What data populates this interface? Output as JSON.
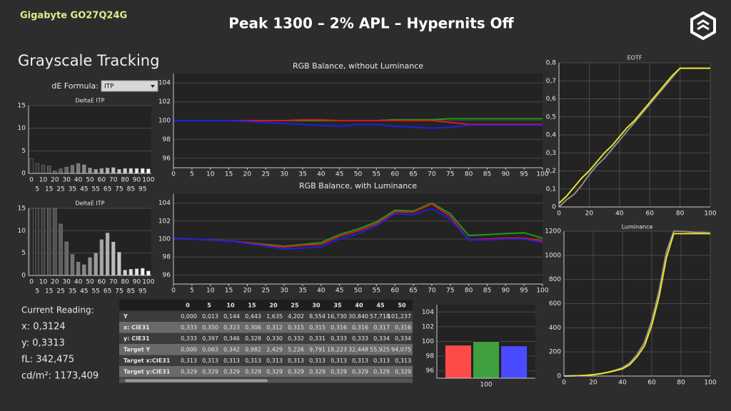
{
  "header": {
    "brand": "Gigabyte GO27Q24G",
    "title": "Peak 1300 – 2% APL – Hypernits Off"
  },
  "panel": {
    "title": "Grayscale Tracking",
    "formula_label": "dE Formula:",
    "formula_value": "ITP"
  },
  "reading": {
    "title": "Current Reading:",
    "lines": [
      "x: 0,3124",
      "y: 0,3313",
      "fL: 342,475",
      "cd/m²: 1173,409"
    ]
  },
  "table": {
    "columns": [
      "0",
      "5",
      "10",
      "15",
      "20",
      "25",
      "30",
      "35",
      "40",
      "45",
      "50"
    ],
    "rows": [
      {
        "label": "Y",
        "cells": [
          "0,000",
          "0,013",
          "0,144",
          "0,443",
          "1,635",
          "4,202",
          "8,554",
          "16,730",
          "30,840",
          "57,718",
          "101,237"
        ]
      },
      {
        "label": "x: CIE31",
        "cells": [
          "0,333",
          "0,350",
          "0,323",
          "0,306",
          "0,312",
          "0,315",
          "0,315",
          "0,316",
          "0,316",
          "0,317",
          "0,316"
        ]
      },
      {
        "label": "y: CIE31",
        "cells": [
          "0,333",
          "0,397",
          "0,346",
          "0,328",
          "0,330",
          "0,332",
          "0,331",
          "0,333",
          "0,333",
          "0,334",
          "0,334"
        ]
      },
      {
        "label": "Target Y",
        "cells": [
          "0,000",
          "0,063",
          "0,342",
          "0,982",
          "2,429",
          "5,226",
          "9,791",
          "18,223",
          "32,448",
          "55,925",
          "94,075"
        ]
      },
      {
        "label": "Target x:CIE31",
        "cells": [
          "0,313",
          "0,313",
          "0,313",
          "0,313",
          "0,313",
          "0,313",
          "0,313",
          "0,313",
          "0,313",
          "0,313",
          "0,313"
        ]
      },
      {
        "label": "Target y:CIE31",
        "cells": [
          "0,329",
          "0,329",
          "0,329",
          "0,329",
          "0,329",
          "0,329",
          "0,329",
          "0,329",
          "0,329",
          "0,329",
          "0,329"
        ]
      }
    ]
  },
  "chart_data": [
    {
      "type": "bar",
      "title": "DeltaE ITP",
      "categories": [
        0,
        5,
        10,
        15,
        20,
        25,
        30,
        35,
        40,
        45,
        50,
        55,
        60,
        65,
        70,
        75,
        80,
        85,
        90,
        95,
        100
      ],
      "values": [
        3.2,
        2.2,
        1.8,
        1.6,
        0.6,
        1.0,
        1.4,
        1.8,
        2.2,
        1.9,
        1.2,
        0.9,
        1.1,
        1.2,
        1.3,
        0.9,
        1.1,
        1.1,
        1.1,
        1.1,
        1.0
      ],
      "colors": [
        "#282828",
        "#333333",
        "#3d3d3d",
        "#484848",
        "#525252",
        "#5d5d5d",
        "#676767",
        "#727272",
        "#7c7c7c",
        "#878787",
        "#919191",
        "#9c9c9c",
        "#a6a6a6",
        "#b1b1b1",
        "#bbbbbb",
        "#c6c6c6",
        "#d0d0d0",
        "#dbdbdb",
        "#e5e5e5",
        "#f0f0f0",
        "#fafafa"
      ],
      "ylim": [
        0,
        15
      ],
      "yticks": [
        0,
        5,
        10,
        15
      ],
      "grid": "y"
    },
    {
      "type": "bar",
      "title": "DeltaE ITP",
      "categories": [
        0,
        5,
        10,
        15,
        20,
        25,
        30,
        35,
        40,
        45,
        50,
        55,
        60,
        65,
        70,
        75,
        80,
        85,
        90,
        95,
        100
      ],
      "values": [
        15,
        15,
        15,
        15,
        15,
        11.5,
        7.5,
        4.7,
        3.0,
        2.4,
        4.0,
        5.0,
        8.0,
        9.5,
        7.5,
        5.2,
        1.2,
        1.4,
        1.5,
        1.6,
        1.0
      ],
      "colors": [
        "#282828",
        "#333333",
        "#3d3d3d",
        "#484848",
        "#525252",
        "#5d5d5d",
        "#676767",
        "#727272",
        "#7c7c7c",
        "#878787",
        "#919191",
        "#9c9c9c",
        "#a6a6a6",
        "#b1b1b1",
        "#bbbbbb",
        "#c6c6c6",
        "#d0d0d0",
        "#dbdbdb",
        "#e5e5e5",
        "#f0f0f0",
        "#fafafa"
      ],
      "ylim": [
        0,
        15
      ],
      "yticks": [
        0,
        5,
        10,
        15
      ],
      "grid": "y"
    },
    {
      "type": "line",
      "title": "RGB Balance, without Luminance",
      "x": [
        0,
        5,
        10,
        15,
        20,
        25,
        30,
        35,
        40,
        45,
        50,
        55,
        60,
        65,
        70,
        75,
        80,
        85,
        90,
        95,
        100
      ],
      "series": [
        {
          "color": "#1f9a1f",
          "values": [
            100,
            100,
            100,
            100,
            100,
            100,
            100,
            100,
            100,
            100,
            100,
            100,
            100.1,
            100.1,
            100.1,
            100.2,
            100.2,
            100.2,
            100.2,
            100.2,
            100.2
          ]
        },
        {
          "color": "#d11a1a",
          "values": [
            100,
            100,
            100,
            100,
            100,
            100,
            100,
            100.1,
            100.1,
            100,
            100,
            100,
            100,
            100,
            100,
            99.8,
            99.6,
            99.6,
            99.6,
            99.6,
            99.6
          ]
        },
        {
          "color": "#2020e0",
          "values": [
            100,
            100,
            100,
            100,
            99.9,
            99.8,
            99.7,
            99.6,
            99.5,
            99.4,
            99.6,
            99.6,
            99.4,
            99.3,
            99.2,
            99.3,
            99.5,
            99.5,
            99.5,
            99.5,
            99.5
          ]
        }
      ],
      "xlim": [
        0,
        100
      ],
      "xticks": [
        0,
        5,
        10,
        15,
        20,
        25,
        30,
        35,
        40,
        45,
        50,
        55,
        60,
        65,
        70,
        75,
        80,
        85,
        90,
        95,
        100
      ],
      "ylim": [
        95,
        105
      ],
      "yticks": [
        96,
        98,
        100,
        102,
        104
      ],
      "grid": "y"
    },
    {
      "type": "line",
      "title": "RGB Balance, with Luminance",
      "x": [
        0,
        5,
        10,
        15,
        20,
        25,
        30,
        35,
        40,
        45,
        50,
        55,
        60,
        65,
        70,
        75,
        80,
        85,
        90,
        95,
        100
      ],
      "series": [
        {
          "color": "#1f9a1f",
          "values": [
            100.1,
            100,
            99.9,
            99.8,
            99.6,
            99.4,
            99.2,
            99.4,
            99.6,
            100.5,
            101.1,
            101.9,
            103.2,
            103.1,
            104.0,
            102.8,
            100.4,
            100.5,
            100.6,
            100.7,
            100.1
          ]
        },
        {
          "color": "#d11a1a",
          "values": [
            100.1,
            100,
            99.9,
            99.8,
            99.6,
            99.3,
            99.1,
            99.3,
            99.4,
            100.3,
            100.9,
            101.7,
            103.0,
            103.0,
            103.9,
            102.5,
            99.9,
            100,
            100.1,
            100.1,
            99.8
          ]
        },
        {
          "color": "#2020e0",
          "values": [
            100.1,
            100,
            99.9,
            99.8,
            99.5,
            99.2,
            98.9,
            99.0,
            99.1,
            100,
            100.6,
            101.5,
            102.8,
            102.7,
            103.4,
            102.2,
            99.9,
            99.9,
            100,
            100,
            99.6
          ]
        }
      ],
      "xlim": [
        0,
        100
      ],
      "xticks": [
        0,
        5,
        10,
        15,
        20,
        25,
        30,
        35,
        40,
        45,
        50,
        55,
        60,
        65,
        70,
        75,
        80,
        85,
        90,
        95,
        100
      ],
      "ylim": [
        95,
        105
      ],
      "yticks": [
        96,
        98,
        100,
        102,
        104
      ],
      "grid": "y"
    },
    {
      "type": "line",
      "title": "EOTF",
      "x": [
        0,
        5,
        10,
        15,
        20,
        25,
        30,
        35,
        40,
        45,
        50,
        55,
        60,
        65,
        70,
        75,
        80,
        85,
        90,
        95,
        100
      ],
      "series": [
        {
          "color": "#8c8c8c",
          "values": [
            0,
            0.04,
            0.07,
            0.12,
            0.18,
            0.23,
            0.27,
            0.32,
            0.37,
            0.42,
            0.47,
            0.52,
            0.57,
            0.62,
            0.67,
            0.72,
            0.77,
            0.77,
            0.77,
            0.77,
            0.77
          ]
        },
        {
          "color": "#e8e02a",
          "values": [
            0.02,
            0.06,
            0.11,
            0.16,
            0.2,
            0.25,
            0.3,
            0.34,
            0.39,
            0.44,
            0.48,
            0.53,
            0.58,
            0.63,
            0.68,
            0.73,
            0.77,
            0.77,
            0.77,
            0.77,
            0.77
          ]
        }
      ],
      "xlim": [
        0,
        100
      ],
      "xticks": [
        0,
        20,
        40,
        60,
        80,
        100
      ],
      "ylim": [
        0,
        0.8
      ],
      "yticks": [
        0,
        {
          "value": 0.1,
          "label": "0,1"
        },
        {
          "value": 0.2,
          "label": "0,2"
        },
        {
          "value": 0.3,
          "label": "0,3"
        },
        {
          "value": 0.4,
          "label": "0,4"
        },
        {
          "value": 0.5,
          "label": "0,5"
        },
        {
          "value": 0.6,
          "label": "0,6"
        },
        {
          "value": 0.7,
          "label": "0,7"
        },
        {
          "value": 0.8,
          "label": "0,8"
        }
      ],
      "grid": "both"
    },
    {
      "type": "line",
      "title": "Luminance",
      "x": [
        0,
        5,
        10,
        15,
        20,
        25,
        30,
        35,
        40,
        45,
        50,
        55,
        60,
        65,
        70,
        75,
        80,
        85,
        90,
        95,
        100
      ],
      "series": [
        {
          "color": "#8c8c8c",
          "values": [
            0,
            1,
            3,
            6,
            12,
            20,
            32,
            48,
            70,
            110,
            180,
            280,
            460,
            710,
            1030,
            1200,
            1200,
            1195,
            1190,
            1190,
            1185
          ]
        },
        {
          "color": "#e8e02a",
          "values": [
            0,
            1,
            3,
            6,
            11,
            19,
            30,
            45,
            60,
            95,
            160,
            250,
            420,
            660,
            980,
            1180,
            1180,
            1180,
            1180,
            1180,
            1180
          ]
        }
      ],
      "xlim": [
        0,
        100
      ],
      "xticks": [
        0,
        20,
        40,
        60,
        80,
        100
      ],
      "ylim": [
        0,
        1200
      ],
      "yticks": [
        0,
        200,
        400,
        600,
        800,
        1000,
        1200
      ],
      "grid": "both"
    },
    {
      "type": "bar",
      "categories": [
        100
      ],
      "series": [
        {
          "color": "#ff4a4a",
          "values": [
            99.5
          ]
        },
        {
          "color": "#3fa03f",
          "values": [
            100
          ]
        },
        {
          "color": "#4a4aff",
          "values": [
            99.4
          ]
        }
      ],
      "ylim": [
        95,
        105
      ],
      "yticks": [
        96,
        98,
        100,
        102,
        104
      ],
      "grid": "y"
    }
  ]
}
